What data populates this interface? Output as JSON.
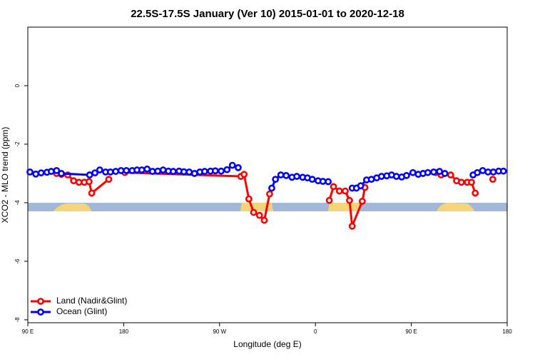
{
  "chart_data": {
    "type": "line",
    "title": "22.5S-17.5S January (Ver 10)   2015-01-01 to 2020-12-18",
    "x_label": "Longitude (deg E)",
    "y_label": "XCO2 - MLO trend (ppm)",
    "xlim": [
      90,
      540
    ],
    "ylim": [
      -8.1,
      2.0
    ],
    "xticks": [
      {
        "value": 90,
        "label": "90 E"
      },
      {
        "value": 180,
        "label": "180"
      },
      {
        "value": 270,
        "label": "90 W"
      },
      {
        "value": 360,
        "label": "0"
      },
      {
        "value": 450,
        "label": "90 E"
      },
      {
        "value": 540,
        "label": "180"
      }
    ],
    "yticks": [
      -8,
      -6,
      -4,
      -2,
      0
    ],
    "legend": "bottom-left",
    "series": [
      {
        "name": "Land (Nadir&Glint)",
        "color": "#ff0000",
        "x": [
          117,
          121.5,
          127.5,
          133,
          138,
          143,
          147.5,
          150,
          166,
          173,
          181,
          290,
          293,
          297.5,
          302,
          307.5,
          312,
          317,
          345,
          373,
          377,
          382.5,
          388,
          392,
          394.5,
          404,
          406.5,
          440,
          473,
          478,
          487,
          492.5,
          497,
          502.5,
          506.5,
          510,
          518,
          526.5
        ],
        "values": [
          -3.0,
          -3.03,
          -3.05,
          -3.25,
          -3.3,
          -3.3,
          -3.28,
          -3.67,
          -3.2,
          null,
          -2.97,
          -3.1,
          -3.03,
          -3.87,
          -4.33,
          -4.43,
          -4.6,
          -3.7,
          null,
          -3.92,
          -3.45,
          -3.6,
          -3.6,
          -3.92,
          -4.8,
          -3.95,
          -3.48,
          null,
          -2.97,
          -3.05,
          -3.05,
          -3.25,
          -3.3,
          -3.3,
          -3.3,
          -3.67,
          null,
          -3.2
        ]
      },
      {
        "name": "Ocean (Glint)",
        "color": "#0000ff",
        "x": [
          92,
          97.5,
          102.5,
          108,
          112,
          117,
          121.5,
          148,
          153,
          157.5,
          163,
          167.5,
          172.5,
          177.5,
          182.5,
          188,
          192.5,
          197,
          202,
          207,
          212,
          217,
          222,
          226.5,
          232,
          236.5,
          241.5,
          246.5,
          251.5,
          256,
          261.5,
          266,
          271.5,
          277,
          282,
          287.5,
          303,
          319,
          322.5,
          327.5,
          332.5,
          338,
          342.5,
          348,
          352.5,
          357,
          362.5,
          367,
          372,
          383,
          394.5,
          398.5,
          402.5,
          408,
          412.5,
          417.5,
          422,
          427,
          431.5,
          436,
          441,
          445.5,
          451.5,
          456.5,
          461,
          465.5,
          471,
          476.5,
          481.5,
          495,
          508,
          512,
          517,
          522,
          527,
          532,
          536.5
        ],
        "values": [
          -2.95,
          -3.02,
          -2.98,
          -2.96,
          -2.93,
          -2.9,
          -3.0,
          -3.05,
          -2.98,
          -2.88,
          -2.95,
          -2.95,
          -2.93,
          -2.9,
          -2.9,
          -2.9,
          -2.88,
          -2.88,
          -2.85,
          -2.93,
          -2.92,
          -2.88,
          -2.92,
          -2.93,
          -2.92,
          -2.94,
          -2.95,
          -3.0,
          -2.95,
          -2.93,
          -2.92,
          -2.91,
          -2.92,
          -2.87,
          -2.72,
          -2.8,
          null,
          -3.5,
          -3.2,
          -3.05,
          -3.07,
          -3.13,
          -3.1,
          -3.13,
          -3.15,
          -3.2,
          -3.25,
          -3.27,
          -3.28,
          null,
          -3.5,
          -3.5,
          -3.42,
          -3.22,
          -3.2,
          -3.15,
          -3.1,
          -3.08,
          -3.05,
          -3.1,
          -3.12,
          -3.07,
          -2.97,
          -3.03,
          -3.0,
          -2.97,
          -2.95,
          -2.93,
          -3.0,
          null,
          -3.05,
          -2.97,
          -2.9,
          -2.95,
          -2.95,
          -2.92,
          -2.92
        ]
      }
    ]
  }
}
